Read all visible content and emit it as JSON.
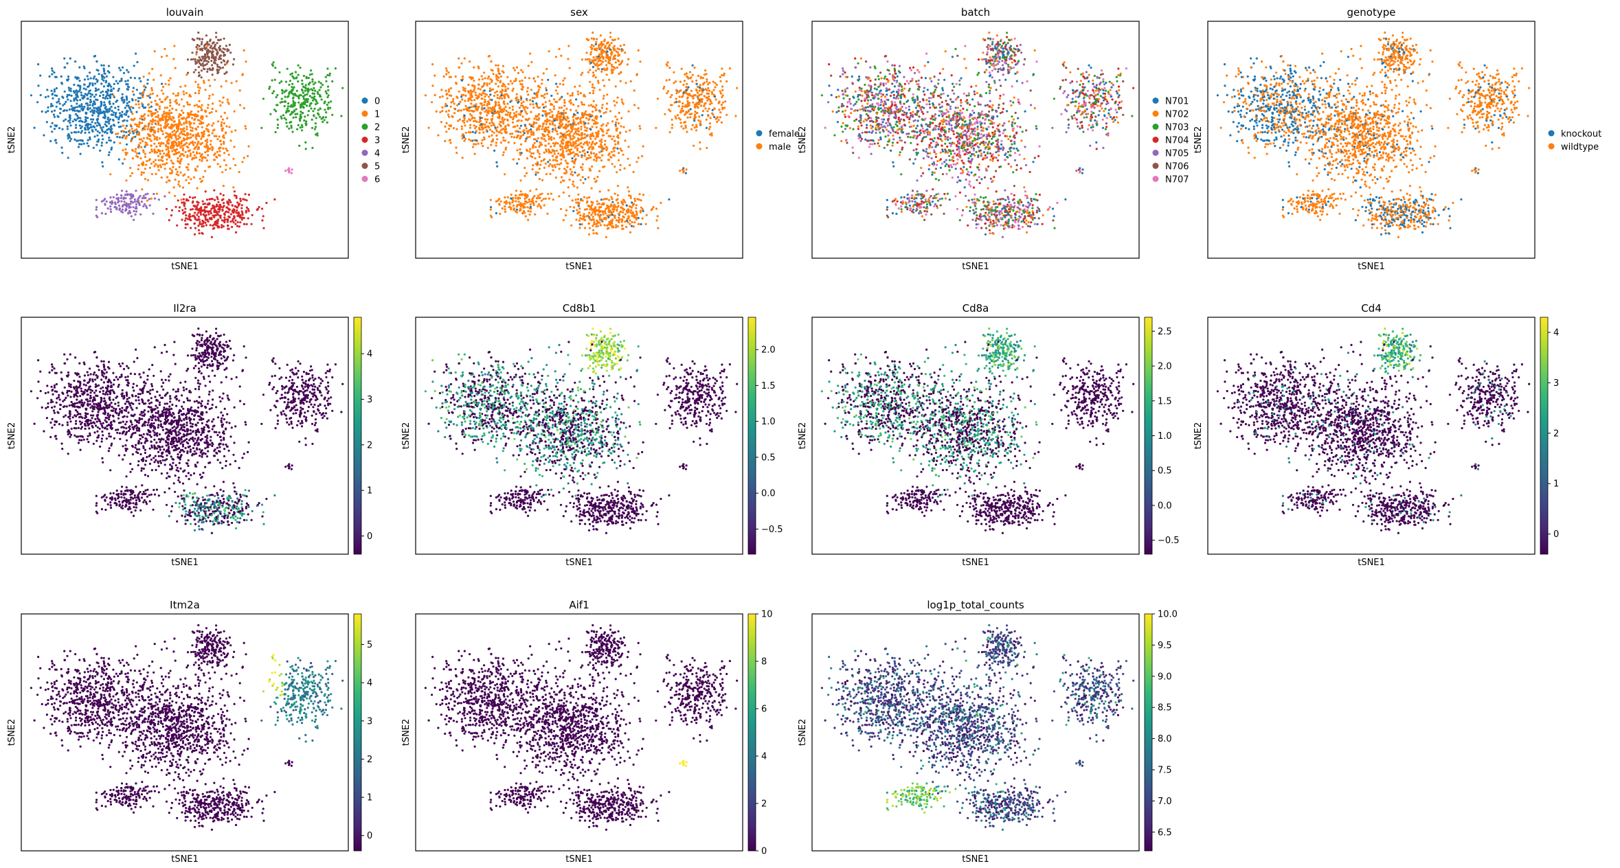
{
  "palette_categorical": [
    "#1f77b4",
    "#ff7f0e",
    "#2ca02c",
    "#d62728",
    "#9467bd",
    "#8c564b",
    "#e377c2"
  ],
  "viridis": [
    "#440154",
    "#482878",
    "#3e4989",
    "#31688e",
    "#26828e",
    "#1f9e89",
    "#35b779",
    "#6ece58",
    "#b5de2b",
    "#fde725"
  ],
  "chart_data": [
    {
      "type": "scatter",
      "title": "louvain",
      "xlabel": "tSNE1",
      "ylabel": "tSNE2",
      "color_mode": "categorical",
      "legend_entries": [
        "0",
        "1",
        "2",
        "3",
        "4",
        "5",
        "6"
      ],
      "legend_position": "right"
    },
    {
      "type": "scatter",
      "title": "sex",
      "xlabel": "tSNE1",
      "ylabel": "tSNE2",
      "color_mode": "categorical",
      "legend_entries": [
        "female",
        "male"
      ],
      "legend_position": "right"
    },
    {
      "type": "scatter",
      "title": "batch",
      "xlabel": "tSNE1",
      "ylabel": "tSNE2",
      "color_mode": "categorical",
      "legend_entries": [
        "N701",
        "N702",
        "N703",
        "N704",
        "N705",
        "N706",
        "N707"
      ],
      "legend_position": "right"
    },
    {
      "type": "scatter",
      "title": "genotype",
      "xlabel": "tSNE1",
      "ylabel": "tSNE2",
      "color_mode": "categorical",
      "legend_entries": [
        "knockout",
        "wildtype"
      ],
      "legend_position": "right"
    },
    {
      "type": "scatter",
      "title": "Il2ra",
      "xlabel": "tSNE1",
      "ylabel": "tSNE2",
      "color_mode": "continuous",
      "colorbar_range": [
        -0.4,
        4.8
      ],
      "colorbar_ticks": [
        "0",
        "1",
        "2",
        "3",
        "4"
      ],
      "colorbar_tick_values": [
        0,
        1,
        2,
        3,
        4
      ]
    },
    {
      "type": "scatter",
      "title": "Cd8b1",
      "xlabel": "tSNE1",
      "ylabel": "tSNE2",
      "color_mode": "continuous",
      "colorbar_range": [
        -0.85,
        2.45
      ],
      "colorbar_ticks": [
        "−0.5",
        "0.0",
        "0.5",
        "1.0",
        "1.5",
        "2.0"
      ],
      "colorbar_tick_values": [
        -0.5,
        0,
        0.5,
        1,
        1.5,
        2
      ]
    },
    {
      "type": "scatter",
      "title": "Cd8a",
      "xlabel": "tSNE1",
      "ylabel": "tSNE2",
      "color_mode": "continuous",
      "colorbar_range": [
        -0.7,
        2.7
      ],
      "colorbar_ticks": [
        "−0.5",
        "0.0",
        "0.5",
        "1.0",
        "1.5",
        "2.0",
        "2.5"
      ],
      "colorbar_tick_values": [
        -0.5,
        0,
        0.5,
        1,
        1.5,
        2,
        2.5
      ]
    },
    {
      "type": "scatter",
      "title": "Cd4",
      "xlabel": "tSNE1",
      "ylabel": "tSNE2",
      "color_mode": "continuous",
      "colorbar_range": [
        -0.4,
        4.3
      ],
      "colorbar_ticks": [
        "0",
        "1",
        "2",
        "3",
        "4"
      ],
      "colorbar_tick_values": [
        0,
        1,
        2,
        3,
        4
      ]
    },
    {
      "type": "scatter",
      "title": "Itm2a",
      "xlabel": "tSNE1",
      "ylabel": "tSNE2",
      "color_mode": "continuous",
      "colorbar_range": [
        -0.4,
        5.8
      ],
      "colorbar_ticks": [
        "0",
        "1",
        "2",
        "3",
        "4",
        "5"
      ],
      "colorbar_tick_values": [
        0,
        1,
        2,
        3,
        4,
        5
      ]
    },
    {
      "type": "scatter",
      "title": "Aif1",
      "xlabel": "tSNE1",
      "ylabel": "tSNE2",
      "color_mode": "continuous",
      "colorbar_range": [
        0,
        10
      ],
      "colorbar_ticks": [
        "0",
        "2",
        "4",
        "6",
        "8",
        "10"
      ],
      "colorbar_tick_values": [
        0,
        2,
        4,
        6,
        8,
        10
      ]
    },
    {
      "type": "scatter",
      "title": "log1p_total_counts",
      "xlabel": "tSNE1",
      "ylabel": "tSNE2",
      "color_mode": "continuous",
      "colorbar_range": [
        6.2,
        10.0
      ],
      "colorbar_ticks": [
        "6.5",
        "7.0",
        "7.5",
        "8.0",
        "8.5",
        "9.0",
        "9.5",
        "10.0"
      ],
      "colorbar_tick_values": [
        6.5,
        7,
        7.5,
        8,
        8.5,
        9,
        9.5,
        10
      ]
    }
  ]
}
